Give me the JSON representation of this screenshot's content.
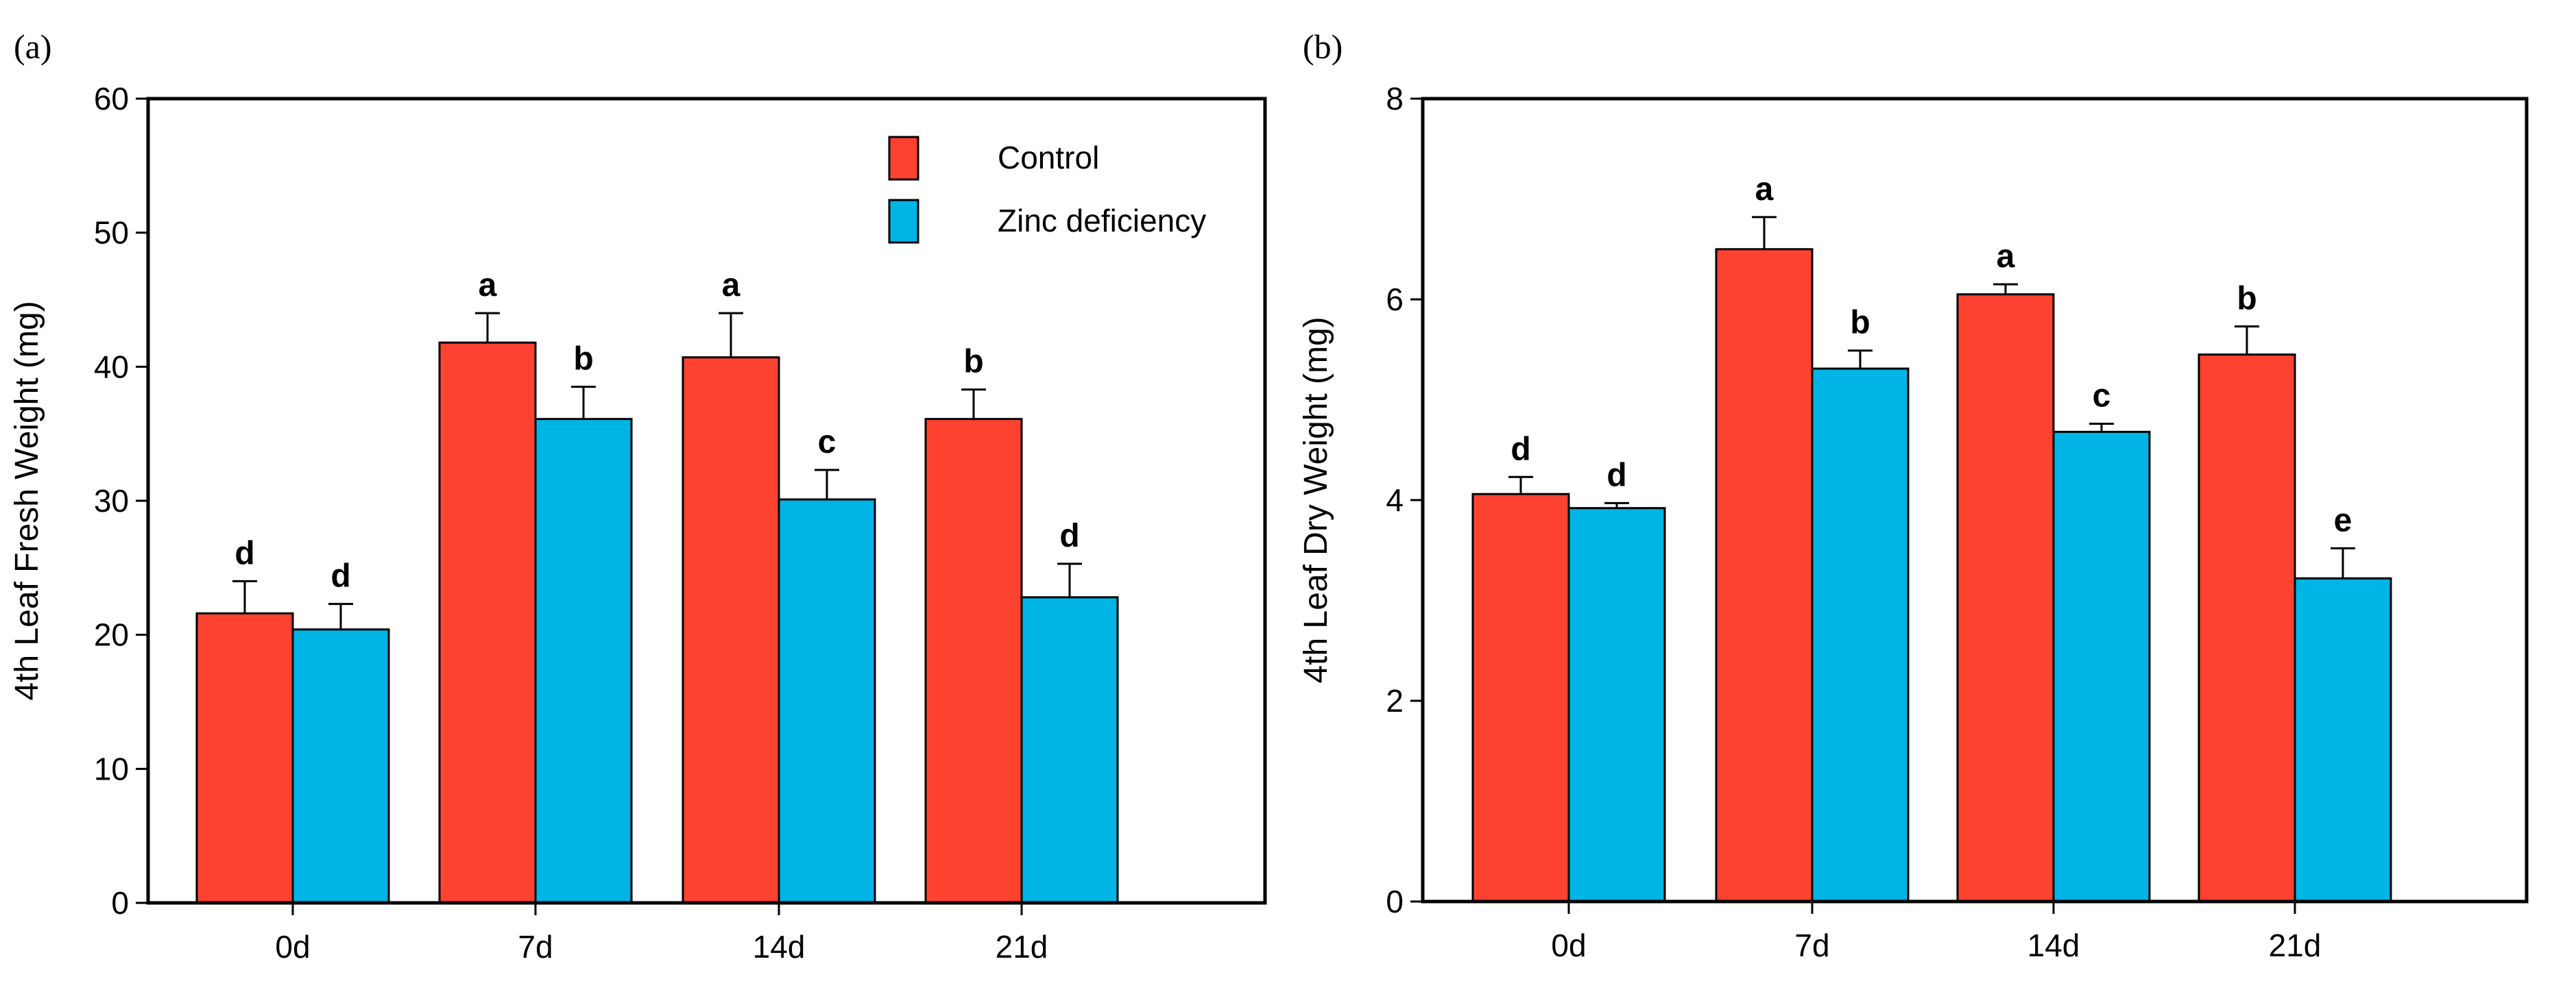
{
  "chart_data": [
    {
      "type": "bar",
      "panel_label": "(a)",
      "categories": [
        "0d",
        "7d",
        "14d",
        "21d"
      ],
      "ylabel": "4th Leaf Fresh Weight (mg)",
      "xlabel": "",
      "ylim": [
        0,
        60
      ],
      "yticks": [
        0,
        10,
        20,
        30,
        40,
        50,
        60
      ],
      "legend": {
        "placement": "top-right",
        "entries": [
          "Control",
          "Zinc deficiency"
        ]
      },
      "series": [
        {
          "name": "Control",
          "color": "#fd4230",
          "values": [
            21.6,
            41.8,
            40.7,
            36.1
          ],
          "errors": [
            2.4,
            2.2,
            3.3,
            2.2
          ],
          "letters": [
            "d",
            "a",
            "a",
            "b"
          ]
        },
        {
          "name": "Zinc deficiency",
          "color": "#00b4e6",
          "values": [
            20.4,
            36.1,
            30.1,
            22.8
          ],
          "errors": [
            1.9,
            2.4,
            2.2,
            2.5
          ],
          "letters": [
            "d",
            "b",
            "c",
            "d"
          ]
        }
      ]
    },
    {
      "type": "bar",
      "panel_label": "(b)",
      "categories": [
        "0d",
        "7d",
        "14d",
        "21d"
      ],
      "ylabel": "4th Leaf  Dry Weight (mg)",
      "xlabel": "",
      "ylim": [
        0,
        8
      ],
      "yticks": [
        0,
        2,
        4,
        6,
        8
      ],
      "series": [
        {
          "name": "Control",
          "color": "#fd4230",
          "values": [
            4.06,
            6.5,
            6.05,
            5.45
          ],
          "errors": [
            0.17,
            0.32,
            0.1,
            0.28
          ],
          "letters": [
            "d",
            "a",
            "a",
            "b"
          ]
        },
        {
          "name": "Zinc deficiency",
          "color": "#00b4e6",
          "values": [
            3.92,
            5.31,
            4.68,
            3.22
          ],
          "errors": [
            0.05,
            0.18,
            0.08,
            0.3
          ],
          "letters": [
            "d",
            "b",
            "c",
            "e"
          ]
        }
      ]
    }
  ]
}
